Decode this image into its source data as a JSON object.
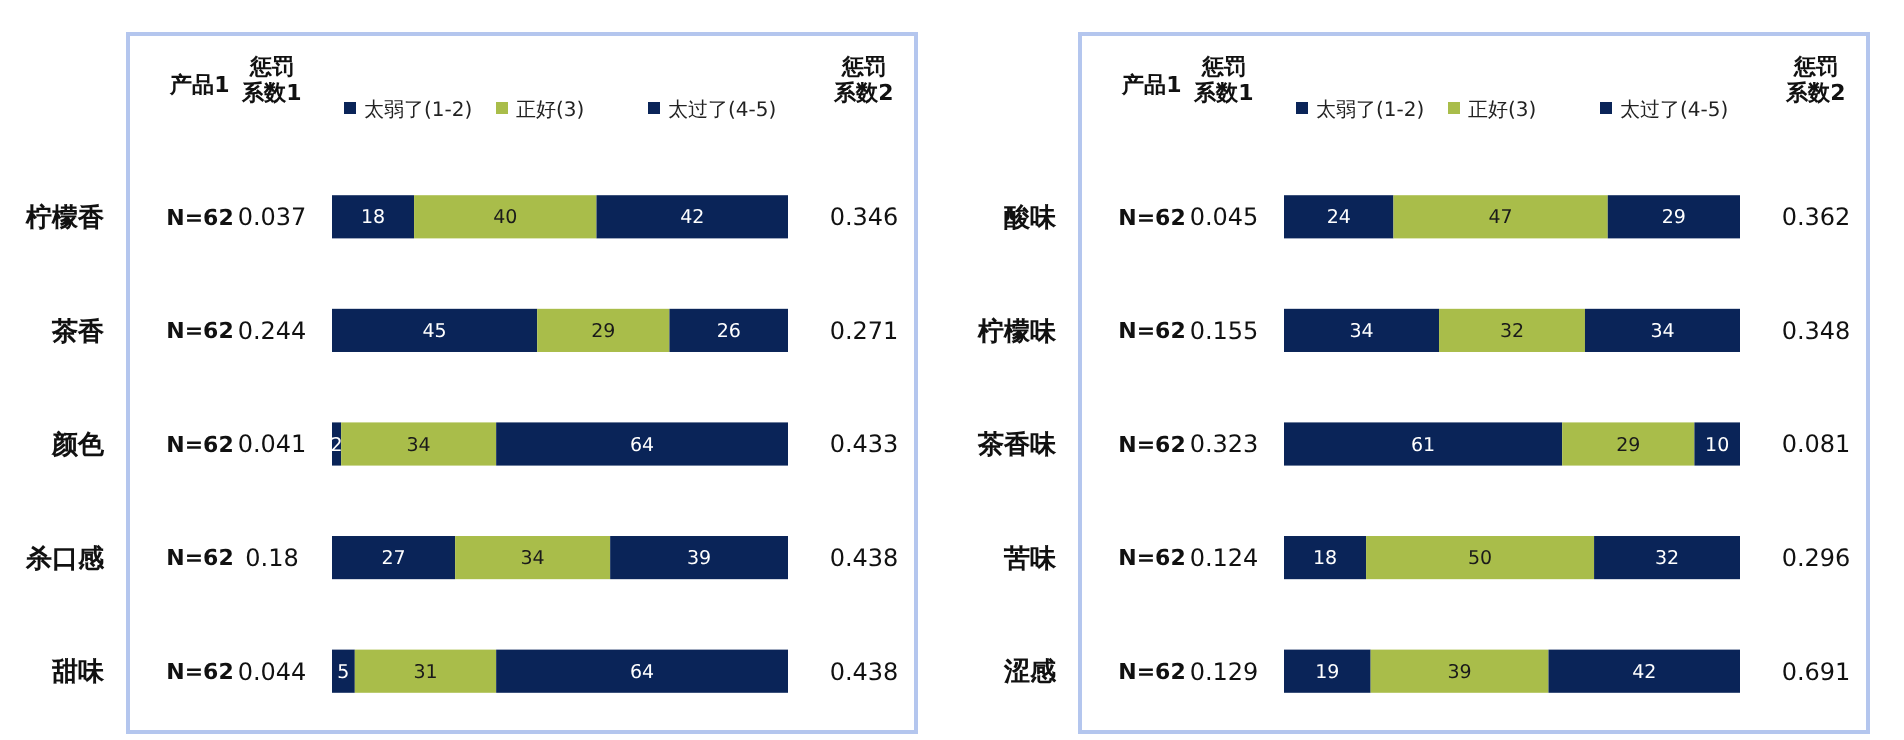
{
  "chart_data": [
    {
      "type": "bar",
      "orientation": "horizontal",
      "stacked": true,
      "data_labels": true,
      "legend": "top",
      "categories": [
        "柠檬香",
        "茶香",
        "颜色",
        "杀口感",
        "甜味"
      ],
      "series": [
        {
          "name": "太弱了(1-2)",
          "color": "#0a2458",
          "values": [
            18,
            45,
            2,
            27,
            5
          ]
        },
        {
          "name": "正好(3)",
          "color": "#a9bd4a",
          "values": [
            40,
            29,
            34,
            34,
            31
          ]
        },
        {
          "name": "太过了(4-5)",
          "color": "#0a2458",
          "values": [
            42,
            26,
            64,
            39,
            64
          ]
        }
      ],
      "annotations": [
        "产品1",
        "惩罚系数1",
        "惩罚系数2",
        "N=62",
        "0.037",
        "0.346",
        "N=62",
        "0.244",
        "0.271",
        "N=62",
        "0.041",
        "0.433",
        "N=62",
        "0.18",
        "0.438",
        "N=62",
        "0.044",
        "0.438"
      ]
    },
    {
      "type": "bar",
      "orientation": "horizontal",
      "stacked": true,
      "data_labels": true,
      "legend": "top",
      "categories": [
        "酸味",
        "柠檬味",
        "茶香味",
        "苦味",
        "涩感"
      ],
      "series": [
        {
          "name": "太弱了(1-2)",
          "color": "#0a2458",
          "values": [
            24,
            34,
            61,
            18,
            19
          ]
        },
        {
          "name": "正好(3)",
          "color": "#a9bd4a",
          "values": [
            47,
            32,
            29,
            50,
            39
          ]
        },
        {
          "name": "太过了(4-5)",
          "color": "#0a2458",
          "values": [
            29,
            34,
            10,
            32,
            42
          ]
        }
      ],
      "annotations": [
        "产品1",
        "惩罚系数1",
        "惩罚系数2",
        "N=62",
        "0.045",
        "0.362",
        "N=62",
        "0.155",
        "0.348",
        "N=62",
        "0.323",
        "0.081",
        "N=62",
        "0.124",
        "0.296",
        "N=62",
        "0.129",
        "0.691"
      ]
    }
  ]
}
